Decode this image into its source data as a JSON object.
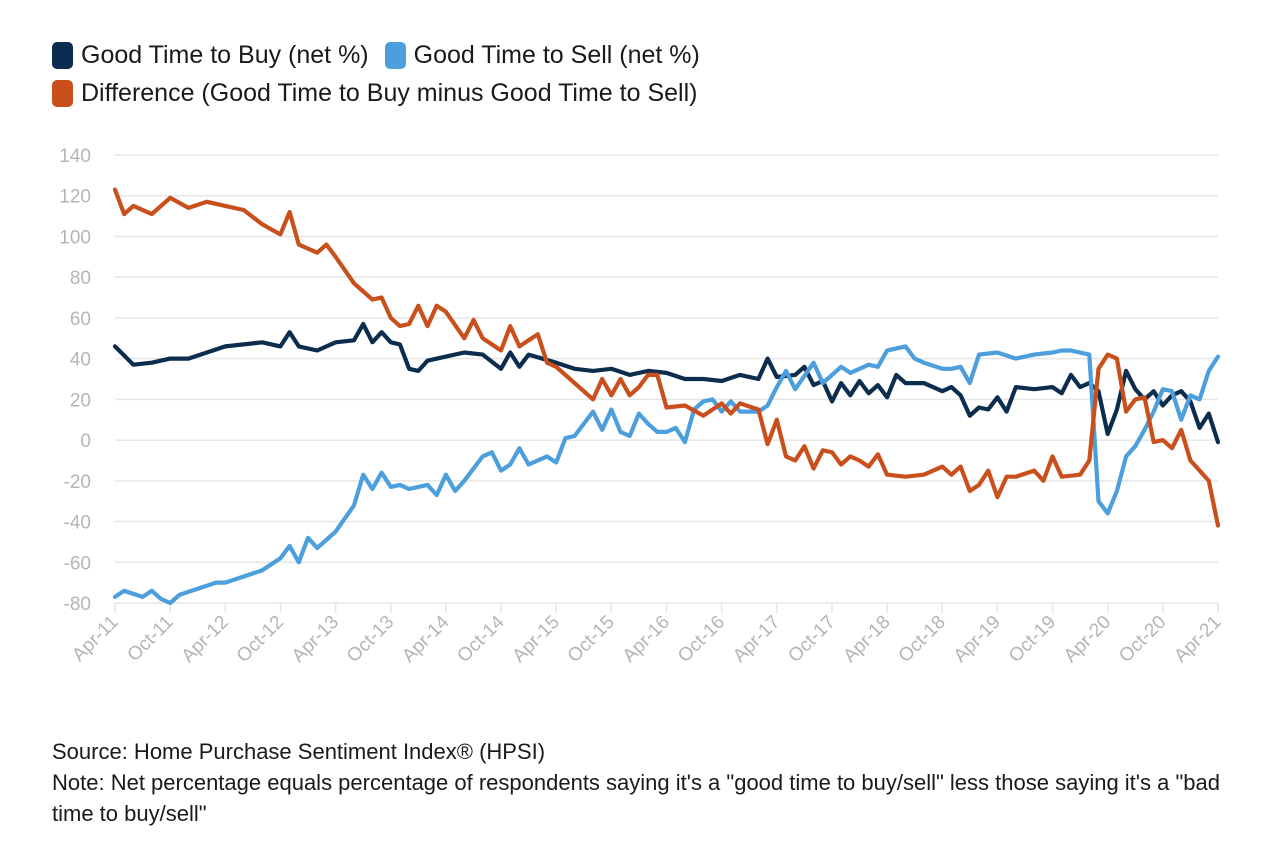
{
  "legend": [
    {
      "label": "Good Time to Buy (net %)",
      "color": "#0c2d4e"
    },
    {
      "label": "Good Time to Sell (net %)",
      "color": "#4c9fdc"
    },
    {
      "label": "Difference (Good Time to Buy minus Good Time to Sell)",
      "color": "#c9501c"
    }
  ],
  "footnotes": {
    "source": "Source: Home Purchase Sentiment Index® (HPSI)",
    "note": "Note: Net percentage equals percentage of respondents saying it's a \"good time to buy/sell\" less those saying it's a \"bad time to buy/sell\""
  },
  "chart_data": {
    "type": "line",
    "ylim": [
      -80,
      140
    ],
    "yticks": [
      140,
      120,
      100,
      80,
      60,
      40,
      20,
      0,
      -20,
      -40,
      -60,
      -80
    ],
    "grid": true,
    "legend_position": "top-left",
    "x_tick_labels": [
      "Apr-11",
      "Oct-11",
      "Apr-12",
      "Oct-12",
      "Apr-13",
      "Oct-13",
      "Apr-14",
      "Oct-14",
      "Apr-15",
      "Oct-15",
      "Apr-16",
      "Oct-16",
      "Apr-17",
      "Oct-17",
      "Apr-18",
      "Oct-18",
      "Apr-19",
      "Oct-19",
      "Apr-20",
      "Oct-20",
      "Apr-21"
    ],
    "x_start": "Apr-11",
    "x_end": "Apr-21",
    "series": [
      {
        "name": "Good Time to Buy (net %)",
        "color": "#0c2d4e",
        "points": [
          [
            "Apr-11",
            46
          ],
          [
            "Jun-11",
            37
          ],
          [
            "Aug-11",
            38
          ],
          [
            "Oct-11",
            40
          ],
          [
            "Dec-11",
            40
          ],
          [
            "Feb-12",
            43
          ],
          [
            "Apr-12",
            46
          ],
          [
            "Jun-12",
            47
          ],
          [
            "Aug-12",
            48
          ],
          [
            "Oct-12",
            46
          ],
          [
            "Nov-12",
            53
          ],
          [
            "Dec-12",
            46
          ],
          [
            "Feb-13",
            44
          ],
          [
            "Apr-13",
            48
          ],
          [
            "Jun-13",
            49
          ],
          [
            "Jul-13",
            57
          ],
          [
            "Aug-13",
            48
          ],
          [
            "Sep-13",
            53
          ],
          [
            "Oct-13",
            48
          ],
          [
            "Nov-13",
            47
          ],
          [
            "Dec-13",
            35
          ],
          [
            "Jan-14",
            34
          ],
          [
            "Feb-14",
            39
          ],
          [
            "Apr-14",
            41
          ],
          [
            "Jun-14",
            43
          ],
          [
            "Aug-14",
            42
          ],
          [
            "Oct-14",
            35
          ],
          [
            "Nov-14",
            43
          ],
          [
            "Dec-14",
            36
          ],
          [
            "Jan-15",
            42
          ],
          [
            "Apr-15",
            38
          ],
          [
            "Jun-15",
            35
          ],
          [
            "Aug-15",
            34
          ],
          [
            "Oct-15",
            35
          ],
          [
            "Dec-15",
            32
          ],
          [
            "Feb-16",
            34
          ],
          [
            "Apr-16",
            33
          ],
          [
            "Jun-16",
            30
          ],
          [
            "Aug-16",
            30
          ],
          [
            "Oct-16",
            29
          ],
          [
            "Dec-16",
            32
          ],
          [
            "Feb-17",
            30
          ],
          [
            "Mar-17",
            40
          ],
          [
            "Apr-17",
            31
          ],
          [
            "Jun-17",
            32
          ],
          [
            "Jul-17",
            36
          ],
          [
            "Aug-17",
            27
          ],
          [
            "Sep-17",
            29
          ],
          [
            "Oct-17",
            19
          ],
          [
            "Nov-17",
            28
          ],
          [
            "Dec-17",
            22
          ],
          [
            "Jan-18",
            29
          ],
          [
            "Feb-18",
            23
          ],
          [
            "Mar-18",
            27
          ],
          [
            "Apr-18",
            21
          ],
          [
            "May-18",
            32
          ],
          [
            "Jun-18",
            28
          ],
          [
            "Aug-18",
            28
          ],
          [
            "Oct-18",
            24
          ],
          [
            "Nov-18",
            26
          ],
          [
            "Dec-18",
            22
          ],
          [
            "Jan-19",
            12
          ],
          [
            "Feb-19",
            16
          ],
          [
            "Mar-19",
            15
          ],
          [
            "Apr-19",
            21
          ],
          [
            "May-19",
            14
          ],
          [
            "Jun-19",
            26
          ],
          [
            "Aug-19",
            25
          ],
          [
            "Oct-19",
            26
          ],
          [
            "Nov-19",
            23
          ],
          [
            "Dec-19",
            32
          ],
          [
            "Jan-20",
            26
          ],
          [
            "Feb-20",
            28
          ],
          [
            "Mar-20",
            24
          ],
          [
            "Apr-20",
            3
          ],
          [
            "May-20",
            15
          ],
          [
            "Jun-20",
            34
          ],
          [
            "Jul-20",
            25
          ],
          [
            "Aug-20",
            20
          ],
          [
            "Sep-20",
            24
          ],
          [
            "Oct-20",
            17
          ],
          [
            "Nov-20",
            22
          ],
          [
            "Dec-20",
            24
          ],
          [
            "Jan-21",
            19
          ],
          [
            "Feb-21",
            6
          ],
          [
            "Mar-21",
            13
          ],
          [
            "Apr-21",
            -1
          ]
        ]
      },
      {
        "name": "Good Time to Sell (net %)",
        "color": "#4c9fdc",
        "points": [
          [
            "Apr-11",
            -77
          ],
          [
            "May-11",
            -74
          ],
          [
            "Jul-11",
            -77
          ],
          [
            "Aug-11",
            -74
          ],
          [
            "Sep-11",
            -78
          ],
          [
            "Oct-11",
            -80
          ],
          [
            "Nov-11",
            -76
          ],
          [
            "Jan-12",
            -73
          ],
          [
            "Mar-12",
            -70
          ],
          [
            "Apr-12",
            -70
          ],
          [
            "Jun-12",
            -67
          ],
          [
            "Aug-12",
            -64
          ],
          [
            "Oct-12",
            -58
          ],
          [
            "Nov-12",
            -52
          ],
          [
            "Dec-12",
            -60
          ],
          [
            "Jan-13",
            -48
          ],
          [
            "Feb-13",
            -53
          ],
          [
            "Apr-13",
            -45
          ],
          [
            "Jun-13",
            -32
          ],
          [
            "Jul-13",
            -17
          ],
          [
            "Aug-13",
            -24
          ],
          [
            "Sep-13",
            -16
          ],
          [
            "Oct-13",
            -23
          ],
          [
            "Nov-13",
            -22
          ],
          [
            "Dec-13",
            -24
          ],
          [
            "Feb-14",
            -22
          ],
          [
            "Mar-14",
            -27
          ],
          [
            "Apr-14",
            -17
          ],
          [
            "May-14",
            -25
          ],
          [
            "Jun-14",
            -20
          ],
          [
            "Aug-14",
            -8
          ],
          [
            "Sep-14",
            -6
          ],
          [
            "Oct-14",
            -15
          ],
          [
            "Nov-14",
            -12
          ],
          [
            "Dec-14",
            -4
          ],
          [
            "Jan-15",
            -12
          ],
          [
            "Mar-15",
            -8
          ],
          [
            "Apr-15",
            -11
          ],
          [
            "May-15",
            1
          ],
          [
            "Jun-15",
            2
          ],
          [
            "Aug-15",
            14
          ],
          [
            "Sep-15",
            5
          ],
          [
            "Oct-15",
            15
          ],
          [
            "Nov-15",
            4
          ],
          [
            "Dec-15",
            2
          ],
          [
            "Jan-16",
            13
          ],
          [
            "Feb-16",
            8
          ],
          [
            "Mar-16",
            4
          ],
          [
            "Apr-16",
            4
          ],
          [
            "May-16",
            6
          ],
          [
            "Jun-16",
            -1
          ],
          [
            "Jul-16",
            15
          ],
          [
            "Aug-16",
            19
          ],
          [
            "Sep-16",
            20
          ],
          [
            "Oct-16",
            14
          ],
          [
            "Nov-16",
            19
          ],
          [
            "Dec-16",
            14
          ],
          [
            "Feb-17",
            14
          ],
          [
            "Mar-17",
            17
          ],
          [
            "Apr-17",
            26
          ],
          [
            "May-17",
            34
          ],
          [
            "Jun-17",
            25
          ],
          [
            "Aug-17",
            38
          ],
          [
            "Sep-17",
            28
          ],
          [
            "Oct-17",
            32
          ],
          [
            "Nov-17",
            36
          ],
          [
            "Dec-17",
            33
          ],
          [
            "Feb-18",
            37
          ],
          [
            "Mar-18",
            36
          ],
          [
            "Apr-18",
            44
          ],
          [
            "Jun-18",
            46
          ],
          [
            "Jul-18",
            40
          ],
          [
            "Aug-18",
            38
          ],
          [
            "Oct-18",
            35
          ],
          [
            "Nov-18",
            35
          ],
          [
            "Dec-18",
            36
          ],
          [
            "Jan-19",
            28
          ],
          [
            "Feb-19",
            42
          ],
          [
            "Apr-19",
            43
          ],
          [
            "Jun-19",
            40
          ],
          [
            "Aug-19",
            42
          ],
          [
            "Oct-19",
            43
          ],
          [
            "Nov-19",
            44
          ],
          [
            "Dec-19",
            44
          ],
          [
            "Feb-20",
            42
          ],
          [
            "Mar-20",
            -30
          ],
          [
            "Apr-20",
            -36
          ],
          [
            "May-20",
            -25
          ],
          [
            "Jun-20",
            -8
          ],
          [
            "Jul-20",
            -3
          ],
          [
            "Aug-20",
            5
          ],
          [
            "Sep-20",
            14
          ],
          [
            "Oct-20",
            25
          ],
          [
            "Nov-20",
            24
          ],
          [
            "Dec-20",
            10
          ],
          [
            "Jan-21",
            22
          ],
          [
            "Feb-21",
            20
          ],
          [
            "Mar-21",
            34
          ],
          [
            "Apr-21",
            41
          ]
        ]
      },
      {
        "name": "Difference (Good Time to Buy minus Good Time to Sell)",
        "color": "#c9501c",
        "points": [
          [
            "Apr-11",
            123
          ],
          [
            "May-11",
            111
          ],
          [
            "Jun-11",
            115
          ],
          [
            "Aug-11",
            111
          ],
          [
            "Oct-11",
            119
          ],
          [
            "Dec-11",
            114
          ],
          [
            "Feb-12",
            117
          ],
          [
            "Apr-12",
            115
          ],
          [
            "Jun-12",
            113
          ],
          [
            "Aug-12",
            106
          ],
          [
            "Oct-12",
            101
          ],
          [
            "Nov-12",
            112
          ],
          [
            "Dec-12",
            96
          ],
          [
            "Feb-13",
            92
          ],
          [
            "Mar-13",
            96
          ],
          [
            "Apr-13",
            90
          ],
          [
            "Jun-13",
            77
          ],
          [
            "Jul-13",
            73
          ],
          [
            "Aug-13",
            69
          ],
          [
            "Sep-13",
            70
          ],
          [
            "Oct-13",
            60
          ],
          [
            "Nov-13",
            56
          ],
          [
            "Dec-13",
            57
          ],
          [
            "Jan-14",
            66
          ],
          [
            "Feb-14",
            56
          ],
          [
            "Mar-14",
            66
          ],
          [
            "Apr-14",
            63
          ],
          [
            "Jun-14",
            50
          ],
          [
            "Jul-14",
            59
          ],
          [
            "Aug-14",
            50
          ],
          [
            "Sep-14",
            47
          ],
          [
            "Oct-14",
            44
          ],
          [
            "Nov-14",
            56
          ],
          [
            "Dec-14",
            46
          ],
          [
            "Feb-15",
            52
          ],
          [
            "Mar-15",
            38
          ],
          [
            "Apr-15",
            36
          ],
          [
            "Jun-15",
            28
          ],
          [
            "Jul-15",
            24
          ],
          [
            "Aug-15",
            20
          ],
          [
            "Sep-15",
            30
          ],
          [
            "Oct-15",
            22
          ],
          [
            "Nov-15",
            30
          ],
          [
            "Dec-15",
            22
          ],
          [
            "Jan-16",
            26
          ],
          [
            "Feb-16",
            32
          ],
          [
            "Mar-16",
            32
          ],
          [
            "Apr-16",
            16
          ],
          [
            "Jun-16",
            17
          ],
          [
            "Aug-16",
            12
          ],
          [
            "Oct-16",
            18
          ],
          [
            "Nov-16",
            13
          ],
          [
            "Dec-16",
            18
          ],
          [
            "Feb-17",
            15
          ],
          [
            "Mar-17",
            -2
          ],
          [
            "Apr-17",
            10
          ],
          [
            "May-17",
            -8
          ],
          [
            "Jun-17",
            -10
          ],
          [
            "Jul-17",
            -3
          ],
          [
            "Aug-17",
            -14
          ],
          [
            "Sep-17",
            -5
          ],
          [
            "Oct-17",
            -6
          ],
          [
            "Nov-17",
            -12
          ],
          [
            "Dec-17",
            -8
          ],
          [
            "Jan-18",
            -10
          ],
          [
            "Feb-18",
            -13
          ],
          [
            "Mar-18",
            -7
          ],
          [
            "Apr-18",
            -17
          ],
          [
            "Jun-18",
            -18
          ],
          [
            "Aug-18",
            -17
          ],
          [
            "Oct-18",
            -13
          ],
          [
            "Nov-18",
            -17
          ],
          [
            "Dec-18",
            -13
          ],
          [
            "Jan-19",
            -25
          ],
          [
            "Feb-19",
            -22
          ],
          [
            "Mar-19",
            -15
          ],
          [
            "Apr-19",
            -28
          ],
          [
            "May-19",
            -18
          ],
          [
            "Jun-19",
            -18
          ],
          [
            "Aug-19",
            -15
          ],
          [
            "Sep-19",
            -20
          ],
          [
            "Oct-19",
            -8
          ],
          [
            "Nov-19",
            -18
          ],
          [
            "Jan-20",
            -17
          ],
          [
            "Feb-20",
            -10
          ],
          [
            "Mar-20",
            35
          ],
          [
            "Apr-20",
            42
          ],
          [
            "May-20",
            40
          ],
          [
            "Jun-20",
            14
          ],
          [
            "Jul-20",
            20
          ],
          [
            "Aug-20",
            21
          ],
          [
            "Sep-20",
            -1
          ],
          [
            "Oct-20",
            0
          ],
          [
            "Nov-20",
            -4
          ],
          [
            "Dec-20",
            5
          ],
          [
            "Jan-21",
            -10
          ],
          [
            "Feb-21",
            -15
          ],
          [
            "Mar-21",
            -20
          ],
          [
            "Apr-21",
            -42
          ]
        ]
      }
    ]
  }
}
